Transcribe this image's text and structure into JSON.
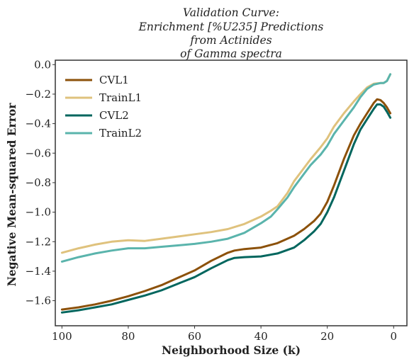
{
  "chart_data": {
    "type": "line",
    "title_lines": [
      "Validation Curve:",
      "Enrichment [%U235] Predictions",
      "from Actinides",
      "of Gamma spectra"
    ],
    "xlabel": "Neighborhood Size (k)",
    "ylabel": "Negative Mean-squared Error",
    "xlim": [
      102,
      -4
    ],
    "ylim": [
      -1.77,
      0.03
    ],
    "x_reversed": true,
    "xticks": [
      100,
      80,
      60,
      40,
      20,
      0
    ],
    "xtick_labels": [
      "100",
      "80",
      "60",
      "40",
      "20",
      "0"
    ],
    "yticks": [
      0.0,
      -0.2,
      -0.4,
      -0.6,
      -0.8,
      -1.0,
      -1.2,
      -1.4,
      -1.6
    ],
    "ytick_labels": [
      "0.0",
      "−0.2",
      "−0.4",
      "−0.6",
      "−0.8",
      "−1.0",
      "−1.2",
      "−1.4",
      "−1.6"
    ],
    "grid": false,
    "legend_position": "upper-left",
    "series": [
      {
        "name": "CVL1",
        "color": "#8c510a",
        "x": [
          100,
          95,
          90,
          85,
          80,
          75,
          70,
          65,
          60,
          55,
          50,
          48,
          45,
          40,
          35,
          30,
          27,
          24,
          22,
          20,
          18,
          15,
          12,
          10,
          8,
          6,
          5,
          4,
          3,
          2,
          1
        ],
        "y": [
          -1.66,
          -1.645,
          -1.625,
          -1.6,
          -1.57,
          -1.535,
          -1.495,
          -1.445,
          -1.395,
          -1.33,
          -1.275,
          -1.26,
          -1.25,
          -1.24,
          -1.21,
          -1.16,
          -1.115,
          -1.06,
          -1.01,
          -0.93,
          -0.82,
          -0.64,
          -0.48,
          -0.4,
          -0.33,
          -0.26,
          -0.235,
          -0.24,
          -0.26,
          -0.29,
          -0.33
        ]
      },
      {
        "name": "TrainL1",
        "color": "#dfc27d",
        "x": [
          100,
          95,
          90,
          85,
          80,
          75,
          70,
          65,
          60,
          55,
          50,
          45,
          40,
          37,
          35,
          32,
          30,
          27,
          25,
          22,
          20,
          18,
          15,
          12,
          10,
          8,
          6,
          4,
          3,
          2,
          1
        ],
        "y": [
          -1.275,
          -1.245,
          -1.22,
          -1.2,
          -1.19,
          -1.195,
          -1.18,
          -1.165,
          -1.15,
          -1.135,
          -1.115,
          -1.08,
          -1.03,
          -0.99,
          -0.96,
          -0.87,
          -0.79,
          -0.7,
          -0.64,
          -0.56,
          -0.5,
          -0.42,
          -0.33,
          -0.25,
          -0.2,
          -0.155,
          -0.13,
          -0.125,
          -0.125,
          -0.11,
          -0.065
        ]
      },
      {
        "name": "CVL2",
        "color": "#01665e",
        "x": [
          100,
          95,
          90,
          85,
          80,
          75,
          70,
          65,
          60,
          55,
          50,
          48,
          45,
          40,
          35,
          30,
          27,
          24,
          22,
          20,
          18,
          15,
          12,
          10,
          8,
          6,
          5,
          4,
          3,
          2,
          1
        ],
        "y": [
          -1.68,
          -1.665,
          -1.645,
          -1.625,
          -1.595,
          -1.565,
          -1.53,
          -1.485,
          -1.44,
          -1.38,
          -1.325,
          -1.31,
          -1.305,
          -1.3,
          -1.28,
          -1.24,
          -1.19,
          -1.13,
          -1.08,
          -1.0,
          -0.9,
          -0.72,
          -0.54,
          -0.44,
          -0.37,
          -0.3,
          -0.27,
          -0.27,
          -0.285,
          -0.32,
          -0.36
        ]
      },
      {
        "name": "TrainL2",
        "color": "#5ab4ac",
        "x": [
          100,
          95,
          90,
          85,
          80,
          75,
          70,
          65,
          60,
          55,
          50,
          45,
          40,
          37,
          35,
          32,
          30,
          27,
          25,
          22,
          20,
          18,
          15,
          12,
          10,
          8,
          6,
          4,
          3,
          2,
          1
        ],
        "y": [
          -1.335,
          -1.305,
          -1.28,
          -1.26,
          -1.245,
          -1.245,
          -1.235,
          -1.225,
          -1.215,
          -1.2,
          -1.18,
          -1.14,
          -1.075,
          -1.03,
          -0.98,
          -0.9,
          -0.83,
          -0.74,
          -0.68,
          -0.61,
          -0.55,
          -0.47,
          -0.38,
          -0.29,
          -0.22,
          -0.165,
          -0.135,
          -0.125,
          -0.125,
          -0.11,
          -0.065
        ]
      }
    ]
  }
}
